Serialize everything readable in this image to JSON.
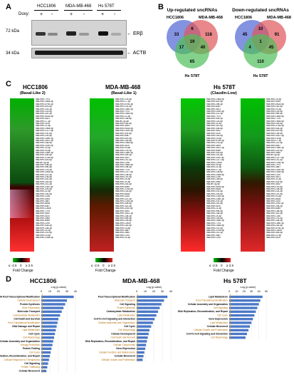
{
  "panelA": {
    "label": "A",
    "cells": [
      "HCC1806",
      "MDA-MB-468",
      "Hs 578T"
    ],
    "doxy_label": "Doxy:",
    "doxy_states": [
      "+",
      "-",
      "+",
      "-",
      "+",
      "-"
    ],
    "markers": [
      "72 kDa",
      "34 kDa"
    ],
    "bands": [
      "ERβ",
      "ACTB"
    ]
  },
  "panelB": {
    "label": "B",
    "up": {
      "title": "Up-regulated sncRNAs",
      "set_labels": [
        "HCC1806",
        "MDA-MB-468",
        "Hs 578T"
      ],
      "regions": {
        "a_only": "33",
        "b_only": "118",
        "c_only": "65",
        "ab": "6",
        "ac": "17",
        "bc": "40",
        "abc": "19"
      }
    },
    "down": {
      "title": "Down-regulated sncRNAs",
      "set_labels": [
        "HCC1806",
        "MDA-MB-468",
        "Hs 578T"
      ],
      "regions": {
        "a_only": "45",
        "b_only": "91",
        "c_only": "110",
        "ab": "10",
        "ac": "4",
        "bc": "45",
        "abc": "1"
      }
    },
    "colors": {
      "a": "#5b6fd6",
      "b": "#e0555a",
      "c": "#4fbf5a"
    }
  },
  "panelC": {
    "label": "C",
    "heatmaps": [
      {
        "title": "HCC1806",
        "subtitle": "(Basal-Like 2)"
      },
      {
        "title": "MDA-MB-468",
        "subtitle": "(Basal-Like 1)"
      },
      {
        "title": "Hs 578T",
        "subtitle": "(Claudin-Low)"
      }
    ],
    "mirnas": [
      "hsa-miR-7974",
      "hsa-miR-185a-5p",
      "hsa-miR-6798-3p",
      "hsa-miR-629-5p",
      "hsa-miR-203-3p",
      "hsa-miR-224-5p",
      "hsa-miR-320-3p",
      "hsa-miR-551a-5p",
      "hsa-miR-4521",
      "hsa-miR-17-3p",
      "hsa-miR-3140",
      "hsa-miR-21-5p",
      "hsa-miR-196a-5p",
      "hsa-miR-1227-5p",
      "hsa-miR-100-5p",
      "hsa-miR-126-5p",
      "hsa-miR-148b-3p",
      "hsa-miR-3922-3p",
      "hsa-miR-15a-5p",
      "hsa-miR-181b-5p",
      "hsa-miR-25-3p",
      "hsa-miR-93-5p",
      "hsa-miR-106b-3p",
      "hsa-miR-30d-5p",
      "hsa-miR-374a-5p",
      "hsa-miR-425-5p",
      "hsa-let-7g-5p",
      "hsa-miR-29a-3p",
      "hsa-miR-99b-5p",
      "hsa-miR-27a-3p",
      "hsa-miR-146a-5p",
      "hsa-miR-222-3p",
      "hsa-miR-10a-5p",
      "hsa-miR-182-5p",
      "hsa-miR-183-5p",
      "hsa-miR-141-3p",
      "hsa-miR-200c-3p",
      "hsa-miR-205-5p",
      "hsa-miR-31-5p",
      "hsa-miR-155-5p",
      "hsa-miR-1246",
      "hsa-miR-4454",
      "hsa-miR-3687",
      "hsa-miR-663a",
      "hsa-miR-6087",
      "hsa-miR-1260b",
      "hsa-miR-7704",
      "hsa-miR-4492",
      "hsa-miR-5100",
      "hsa-miR-3960",
      "hsa-miR-6089",
      "hsa-miR-1290",
      "hsa-miR-92a-3p",
      "hsa-miR-23a-3p",
      "hsa-miR-24-3p",
      "hsa-miR-191-5p",
      "hsa-miR-16-5p",
      "hsa-miR-103a-3p"
    ],
    "legend": {
      "min": "≤ -2.5",
      "mid": "0",
      "max": "≥ 2.5",
      "caption": "Fold Change"
    }
  },
  "panelD": {
    "label": "D",
    "axis_label": "-Log (p-value)",
    "charts": [
      {
        "title": "HCC1806",
        "ticks": [
          "0",
          "10",
          "20",
          "30",
          "40"
        ],
        "max": 40,
        "categories": [
          {
            "name": "RNA Post-Transcriptional Modification",
            "value": 38
          },
          {
            "name": "Cellular Development",
            "value": 30
          },
          {
            "name": "Protein Synthesis",
            "value": 28
          },
          {
            "name": "Gene Expression",
            "value": 26
          },
          {
            "name": "Molecular Transport",
            "value": 24
          },
          {
            "name": "Carbohydrate Metabolism",
            "value": 22
          },
          {
            "name": "Cell Death and Survival",
            "value": 20
          },
          {
            "name": "Post-Translational Modification",
            "value": 19
          },
          {
            "name": "DNA Damage and Repair",
            "value": 18
          },
          {
            "name": "Lipid Metabolism",
            "value": 17
          },
          {
            "name": "Cell Cycle",
            "value": 16
          },
          {
            "name": "Cell Morphology",
            "value": 15
          },
          {
            "name": "Cellular Assembly and Organization",
            "value": 14
          },
          {
            "name": "Energy Production",
            "value": 13
          },
          {
            "name": "Protein Folding",
            "value": 12
          },
          {
            "name": "Cell Cycle",
            "value": 11
          },
          {
            "name": "DNA Replication, Recombination, and Repair",
            "value": 10
          },
          {
            "name": "Cellular Response to Therapeutics",
            "value": 9
          },
          {
            "name": "Cell Signaling",
            "value": 8
          },
          {
            "name": "Protein Trafficking",
            "value": 7
          },
          {
            "name": "Cellular Movement",
            "value": 6
          }
        ]
      },
      {
        "title": "MDA-MB-468",
        "ticks": [
          "0",
          "10",
          "20",
          "30",
          "40"
        ],
        "max": 40,
        "categories": [
          {
            "name": "Post-Transcriptional Modification",
            "value": 36
          },
          {
            "name": "Molecular Transport",
            "value": 32
          },
          {
            "name": "Cell Signaling",
            "value": 29
          },
          {
            "name": "Protein Synthesis",
            "value": 27
          },
          {
            "name": "Carbohydrate Metabolism",
            "value": 25
          },
          {
            "name": "Lipid Metabolism",
            "value": 23
          },
          {
            "name": "Cell-To-Cell Signaling and Interaction",
            "value": 21
          },
          {
            "name": "Cellular Assembly and Organization",
            "value": 19
          },
          {
            "name": "Cell Cycle",
            "value": 17
          },
          {
            "name": "Cell Morphology",
            "value": 15
          },
          {
            "name": "Cellular Development",
            "value": 14
          },
          {
            "name": "Cell Death and Survival",
            "value": 13
          },
          {
            "name": "DNA Replication, Recombination, and Repair",
            "value": 12
          },
          {
            "name": "Cellular Compromise",
            "value": 11
          },
          {
            "name": "Gene Expression",
            "value": 10
          },
          {
            "name": "Cellular Function and Maintenance",
            "value": 9
          },
          {
            "name": "Cellular Movement",
            "value": 8
          },
          {
            "name": "Cellular Growth and Proliferation",
            "value": 7
          }
        ]
      },
      {
        "title": "Hs 578T",
        "ticks": [
          "0",
          "10",
          "20",
          "30",
          "40",
          "50"
        ],
        "max": 50,
        "categories": [
          {
            "name": "Lipid Metabolism",
            "value": 45
          },
          {
            "name": "Post-Translational Modification",
            "value": 42
          },
          {
            "name": "Cellular Assembly and Organization",
            "value": 40
          },
          {
            "name": "Cell Signaling",
            "value": 38
          },
          {
            "name": "DNA Replication, Recombination, and Repair",
            "value": 36
          },
          {
            "name": "Cell Cycle",
            "value": 34
          },
          {
            "name": "Gene Expression",
            "value": 32
          },
          {
            "name": "Lipid Metabolism",
            "value": 30
          },
          {
            "name": "Cellular Movement",
            "value": 28
          },
          {
            "name": "Cellular Growth and Proliferation",
            "value": 26
          },
          {
            "name": "Cell-To-Cell Signaling and Interaction",
            "value": 24
          },
          {
            "name": "Cell Morphology",
            "value": 22
          }
        ]
      }
    ]
  }
}
